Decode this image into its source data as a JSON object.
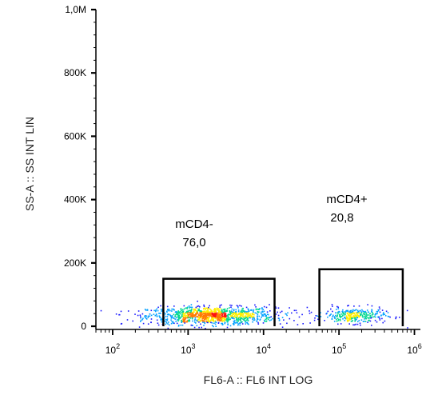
{
  "chart_data": {
    "type": "scatter",
    "xlabel": "FL6-A :: FL6 INT LOG",
    "ylabel": "SS-A :: SS INT LIN",
    "x_scale": "log",
    "x_range": [
      60,
      1200000
    ],
    "y_range": [
      -10000,
      1000000
    ],
    "x_ticks": [
      {
        "value": 100,
        "base": "10",
        "exp": "2"
      },
      {
        "value": 1000,
        "base": "10",
        "exp": "3"
      },
      {
        "value": 10000,
        "base": "10",
        "exp": "4"
      },
      {
        "value": 100000,
        "base": "10",
        "exp": "5"
      },
      {
        "value": 1000000,
        "base": "10",
        "exp": "6"
      }
    ],
    "y_ticks": [
      {
        "value": 0,
        "label": "0"
      },
      {
        "value": 200000,
        "label": "200K"
      },
      {
        "value": 400000,
        "label": "400K"
      },
      {
        "value": 600000,
        "label": "600K"
      },
      {
        "value": 800000,
        "label": "800K"
      },
      {
        "value": 1000000,
        "label": "1,0M"
      }
    ],
    "gates": [
      {
        "name": "mCD4-",
        "percent": "76,0",
        "x_range": [
          470,
          14000
        ],
        "y_range": [
          0,
          150000
        ]
      },
      {
        "name": "mCD4+",
        "percent": "20,8",
        "x_range": [
          55000,
          700000
        ],
        "y_range": [
          0,
          180000
        ]
      }
    ],
    "populations": [
      {
        "center_log10_x": 3.3,
        "spread_log10_x": 0.42,
        "center_y": 35000,
        "spread_y": 14000,
        "fraction": 0.76
      },
      {
        "center_log10_x": 5.2,
        "spread_log10_x": 0.2,
        "center_y": 35000,
        "spread_y": 12000,
        "fraction": 0.21
      },
      {
        "center_log10_x": 4.4,
        "spread_log10_x": 0.9,
        "center_y": 40000,
        "spread_y": 20000,
        "fraction": 0.03
      }
    ],
    "event_count": 1500,
    "grid": false,
    "density_colors": [
      "#1a1aff",
      "#00a0ff",
      "#00d890",
      "#ffee00",
      "#ff7a00",
      "#ff1010"
    ]
  }
}
